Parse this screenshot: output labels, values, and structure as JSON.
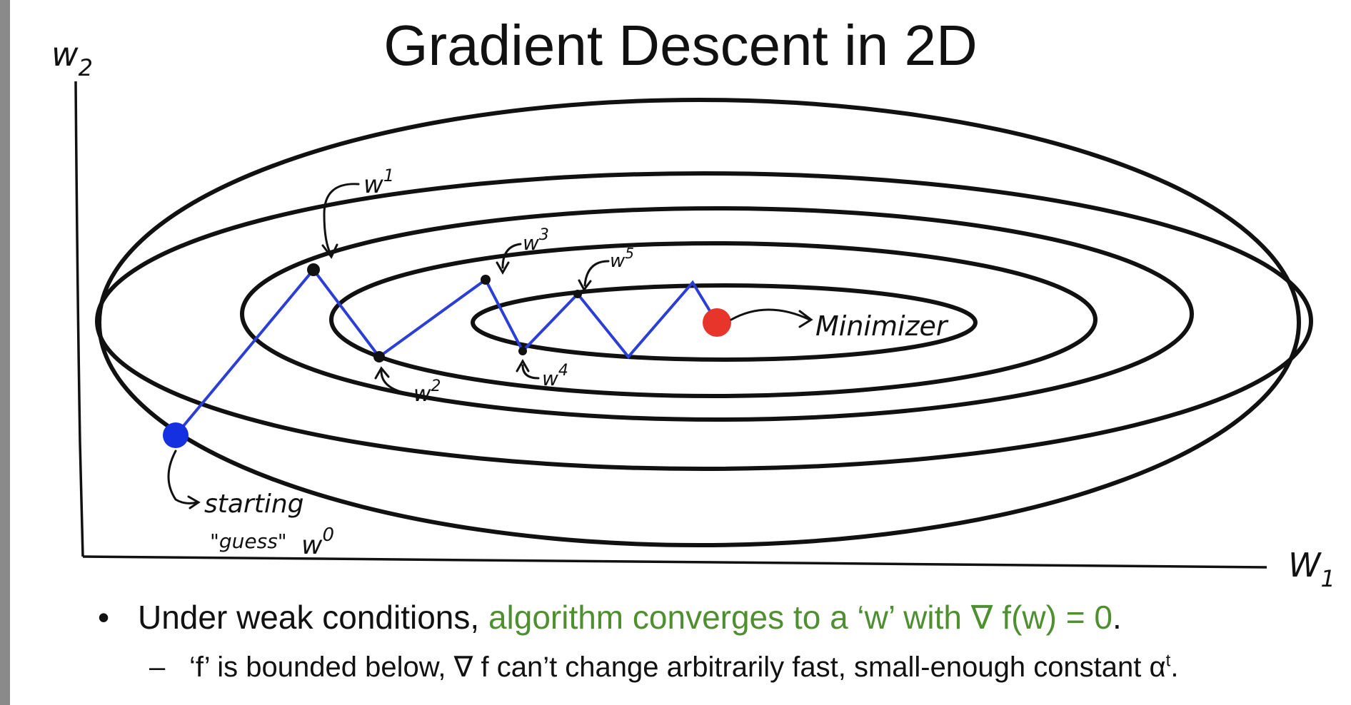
{
  "title": "Gradient Descent in 2D",
  "axes": {
    "y_label": "w",
    "y_sub": "2",
    "x_label": "W",
    "x_sub": "1"
  },
  "annotations": {
    "w1": {
      "base": "w",
      "sup": "1"
    },
    "w2": {
      "base": "w",
      "sup": "2"
    },
    "w3": {
      "base": "w",
      "sup": "3"
    },
    "w4": {
      "base": "w",
      "sup": "4"
    },
    "w5": {
      "base": "w",
      "sup": "5"
    },
    "minimizer": "Minimizer",
    "start_line1": "starting",
    "start_line2": "\"guess\"",
    "start_w0": {
      "base": "w",
      "sup": "0"
    }
  },
  "colors": {
    "path": "#2b3fd6",
    "start_point": "#1530e0",
    "minimizer_point": "#e8352b",
    "contour": "#111111",
    "highlight_text": "#4e8f2f"
  },
  "bullets": [
    {
      "marker": "•",
      "text_before": "Under weak conditions, ",
      "text_highlight": "algorithm converges to a ‘w’ with ∇ f(w) = 0",
      "text_after": "."
    },
    {
      "marker": "–",
      "text": "‘f’ is bounded below, ∇ f can’t change arbitrarily fast, small-enough constant α",
      "sup": "t",
      "text_after": "."
    }
  ]
}
